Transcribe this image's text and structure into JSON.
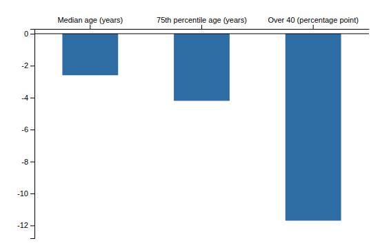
{
  "chart_data": {
    "type": "bar",
    "categories": [
      "Median age (years)",
      "75th percentile age (years)",
      "Over 40 (percentage point)"
    ],
    "values": [
      -2.6,
      -4.2,
      -11.7
    ],
    "color": "#2e6da4",
    "ylim": [
      -12.8,
      0.3
    ],
    "yticks": [
      0,
      -2,
      -4,
      -6,
      -8,
      -10,
      -12
    ],
    "grid": false
  }
}
